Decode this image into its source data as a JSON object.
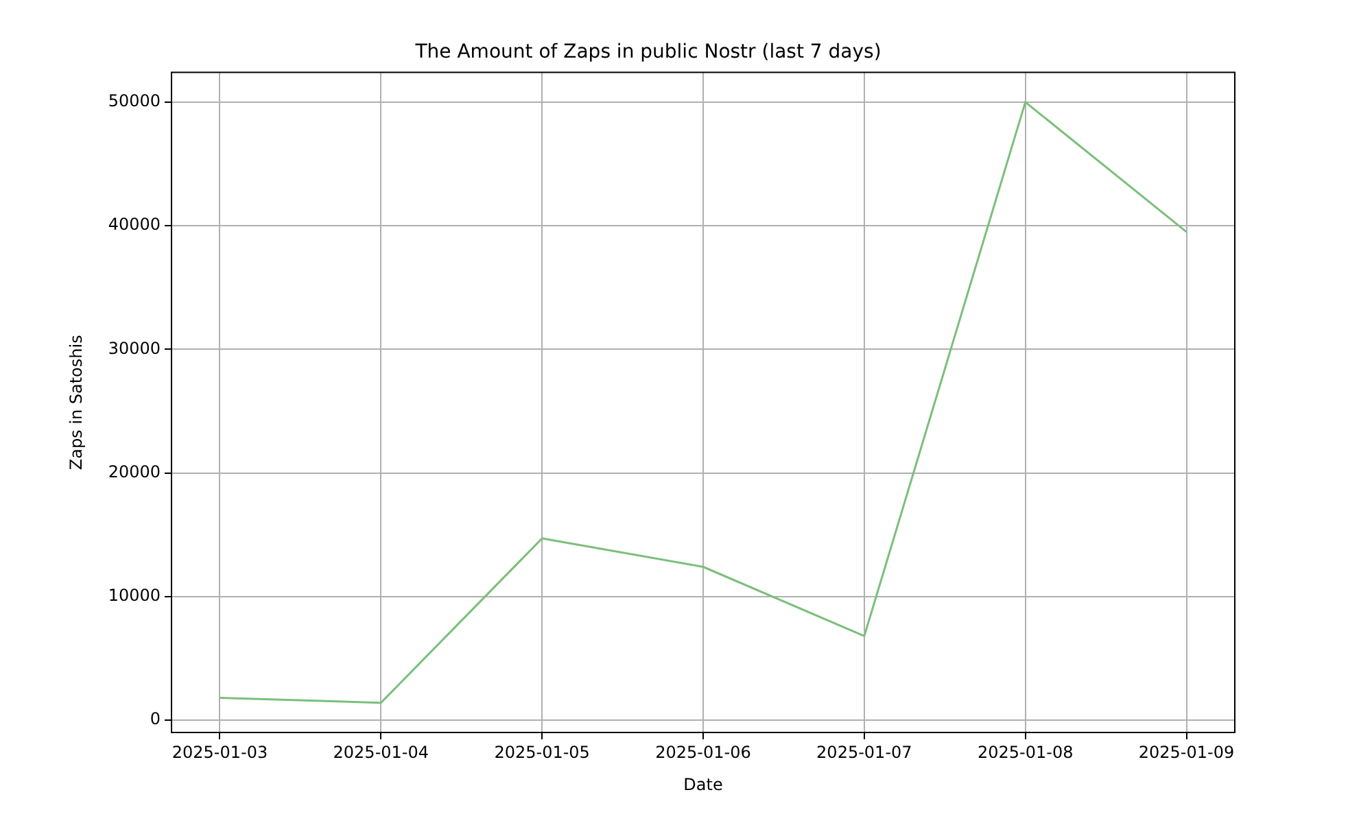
{
  "chart_data": {
    "type": "line",
    "title": "The Amount of Zaps in public Nostr (last 7 days)",
    "xlabel": "Date",
    "ylabel": "Zaps in Satoshis",
    "x": [
      "2025-01-03",
      "2025-01-04",
      "2025-01-05",
      "2025-01-06",
      "2025-01-07",
      "2025-01-08",
      "2025-01-09"
    ],
    "series": [
      {
        "color": "#7bbf7b",
        "values": [
          1800,
          1400,
          14700,
          12400,
          6800,
          50000,
          39500
        ]
      }
    ],
    "xlim": [
      "2025-01-02T16:48",
      "2025-01-09T07:12"
    ],
    "xticks": [
      "2025-01-03",
      "2025-01-04",
      "2025-01-05",
      "2025-01-06",
      "2025-01-07",
      "2025-01-08",
      "2025-01-09"
    ],
    "ylim": [
      -1000,
      52400
    ],
    "yticks": [
      0,
      10000,
      20000,
      30000,
      40000,
      50000
    ],
    "grid": true,
    "legend": false,
    "marker": "none",
    "line_style": "solid"
  }
}
